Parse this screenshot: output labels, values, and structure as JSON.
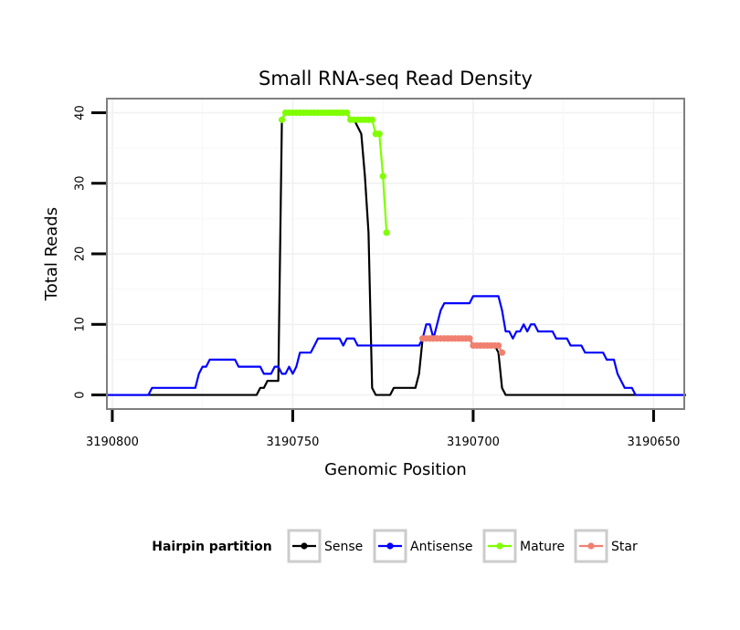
{
  "chart_data": {
    "type": "line",
    "title": "Small RNA-seq Read Density",
    "xlabel": "Genomic Position",
    "ylabel": "Total Reads",
    "x_reversed": true,
    "xlim": [
      3190801.5,
      3190641.5
    ],
    "ylim": [
      -2,
      42
    ],
    "x_ticks": [
      3190800,
      3190750,
      3190700,
      3190650
    ],
    "x_tick_labels": [
      "3190800",
      "3190750",
      "3190700",
      "3190650"
    ],
    "y_ticks": [
      0,
      10,
      20,
      30,
      40
    ],
    "y_tick_labels": [
      "0",
      "10",
      "20",
      "30",
      "40"
    ],
    "grid": true,
    "legend": {
      "title": "Hairpin partition",
      "position": "bottom",
      "entries": [
        "Sense",
        "Antisense",
        "Mature",
        "Star"
      ]
    },
    "series": [
      {
        "name": "Sense",
        "color": "#000000",
        "markers": false,
        "points": [
          [
            3190802,
            0
          ],
          [
            3190760,
            0
          ],
          [
            3190759,
            1
          ],
          [
            3190758,
            1
          ],
          [
            3190757,
            2
          ],
          [
            3190756,
            2
          ],
          [
            3190754,
            2
          ],
          [
            3190753,
            39
          ],
          [
            3190752,
            40
          ],
          [
            3190735,
            40
          ],
          [
            3190734,
            39
          ],
          [
            3190733,
            39
          ],
          [
            3190732,
            38
          ],
          [
            3190731,
            37
          ],
          [
            3190730,
            31
          ],
          [
            3190729,
            23
          ],
          [
            3190728,
            1
          ],
          [
            3190727,
            0
          ],
          [
            3190723,
            0
          ],
          [
            3190722,
            1
          ],
          [
            3190716,
            1
          ],
          [
            3190715,
            3
          ],
          [
            3190714,
            8
          ],
          [
            3190713,
            8
          ],
          [
            3190701,
            8
          ],
          [
            3190700,
            7
          ],
          [
            3190694,
            7
          ],
          [
            3190693,
            6
          ],
          [
            3190692,
            1
          ],
          [
            3190691,
            0
          ],
          [
            3190641,
            0
          ]
        ]
      },
      {
        "name": "Antisense",
        "color": "#0000ff",
        "markers": false,
        "points": [
          [
            3190802,
            0
          ],
          [
            3190790,
            0
          ],
          [
            3190789,
            1
          ],
          [
            3190777,
            1
          ],
          [
            3190776,
            3
          ],
          [
            3190775,
            4
          ],
          [
            3190774,
            4
          ],
          [
            3190773,
            5
          ],
          [
            3190766,
            5
          ],
          [
            3190765,
            4
          ],
          [
            3190759,
            4
          ],
          [
            3190758,
            3
          ],
          [
            3190756,
            3
          ],
          [
            3190755,
            4
          ],
          [
            3190754,
            4
          ],
          [
            3190753,
            3
          ],
          [
            3190752,
            3
          ],
          [
            3190751,
            4
          ],
          [
            3190750,
            3
          ],
          [
            3190749,
            4
          ],
          [
            3190748,
            6
          ],
          [
            3190745,
            6
          ],
          [
            3190744,
            7
          ],
          [
            3190743,
            8
          ],
          [
            3190737,
            8
          ],
          [
            3190736,
            7
          ],
          [
            3190735,
            8
          ],
          [
            3190733,
            8
          ],
          [
            3190732,
            7
          ],
          [
            3190715,
            7
          ],
          [
            3190714,
            8
          ],
          [
            3190713,
            10
          ],
          [
            3190712,
            10
          ],
          [
            3190711,
            8
          ],
          [
            3190710,
            10
          ],
          [
            3190709,
            12
          ],
          [
            3190708,
            13
          ],
          [
            3190701,
            13
          ],
          [
            3190700,
            14
          ],
          [
            3190693,
            14
          ],
          [
            3190692,
            12
          ],
          [
            3190691,
            9
          ],
          [
            3190690,
            9
          ],
          [
            3190689,
            8
          ],
          [
            3190688,
            9
          ],
          [
            3190687,
            9
          ],
          [
            3190686,
            10
          ],
          [
            3190685,
            9
          ],
          [
            3190684,
            10
          ],
          [
            3190683,
            10
          ],
          [
            3190682,
            9
          ],
          [
            3190678,
            9
          ],
          [
            3190677,
            8
          ],
          [
            3190674,
            8
          ],
          [
            3190673,
            7
          ],
          [
            3190670,
            7
          ],
          [
            3190669,
            6
          ],
          [
            3190664,
            6
          ],
          [
            3190663,
            5
          ],
          [
            3190661,
            5
          ],
          [
            3190660,
            3
          ],
          [
            3190658,
            1
          ],
          [
            3190656,
            1
          ],
          [
            3190655,
            0
          ],
          [
            3190641,
            0
          ]
        ]
      },
      {
        "name": "Mature",
        "color": "#7fff00",
        "markers": true,
        "points": [
          [
            3190753,
            39
          ],
          [
            3190752,
            40
          ],
          [
            3190751,
            40
          ],
          [
            3190750,
            40
          ],
          [
            3190749,
            40
          ],
          [
            3190748,
            40
          ],
          [
            3190747,
            40
          ],
          [
            3190746,
            40
          ],
          [
            3190745,
            40
          ],
          [
            3190744,
            40
          ],
          [
            3190743,
            40
          ],
          [
            3190742,
            40
          ],
          [
            3190741,
            40
          ],
          [
            3190740,
            40
          ],
          [
            3190739,
            40
          ],
          [
            3190738,
            40
          ],
          [
            3190737,
            40
          ],
          [
            3190736,
            40
          ],
          [
            3190735,
            40
          ],
          [
            3190734,
            39
          ],
          [
            3190733,
            39
          ],
          [
            3190732,
            39
          ],
          [
            3190731,
            39
          ],
          [
            3190730,
            39
          ],
          [
            3190729,
            39
          ],
          [
            3190728,
            39
          ],
          [
            3190727,
            37
          ],
          [
            3190726,
            37
          ],
          [
            3190725,
            31
          ],
          [
            3190724,
            23
          ]
        ]
      },
      {
        "name": "Star",
        "color": "#f08070",
        "markers": true,
        "points": [
          [
            3190714,
            8
          ],
          [
            3190713,
            8
          ],
          [
            3190712,
            8
          ],
          [
            3190711,
            8
          ],
          [
            3190710,
            8
          ],
          [
            3190709,
            8
          ],
          [
            3190708,
            8
          ],
          [
            3190707,
            8
          ],
          [
            3190706,
            8
          ],
          [
            3190705,
            8
          ],
          [
            3190704,
            8
          ],
          [
            3190703,
            8
          ],
          [
            3190702,
            8
          ],
          [
            3190701,
            8
          ],
          [
            3190700,
            7
          ],
          [
            3190699,
            7
          ],
          [
            3190698,
            7
          ],
          [
            3190697,
            7
          ],
          [
            3190696,
            7
          ],
          [
            3190695,
            7
          ],
          [
            3190694,
            7
          ],
          [
            3190693,
            7
          ],
          [
            3190692,
            6
          ]
        ]
      }
    ]
  }
}
